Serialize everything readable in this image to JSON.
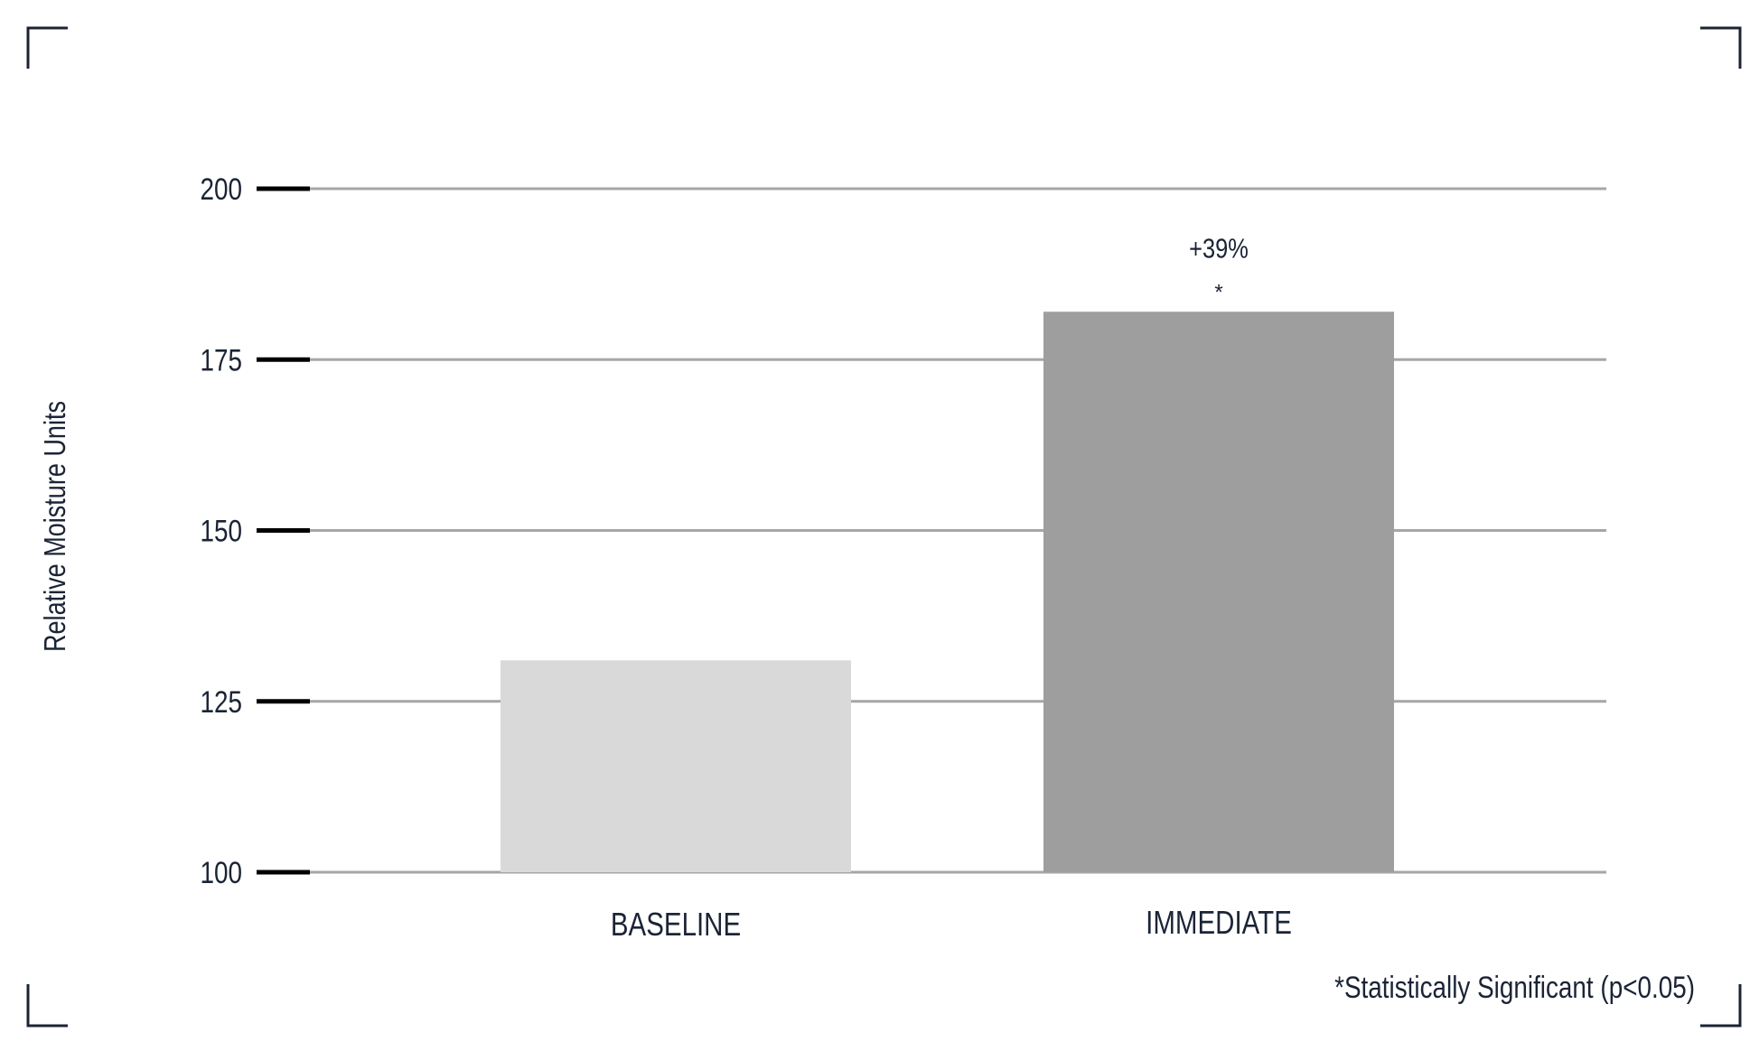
{
  "chart_data": {
    "type": "bar",
    "title": "",
    "xlabel": "",
    "ylabel": "Relative Moisture Units",
    "categories": [
      "BASELINE",
      "IMMEDIATE"
    ],
    "values": [
      131,
      182
    ],
    "ylim": [
      100,
      200
    ],
    "yticks": [
      100,
      125,
      150,
      175,
      200
    ],
    "ytick_labels": [
      "100",
      "125",
      "150",
      "175",
      "200"
    ],
    "grid": true,
    "bar_colors": [
      "#d9d9d9",
      "#9e9e9e"
    ],
    "annotations": [
      {
        "category": "IMMEDIATE",
        "text": "+39%",
        "mark": "*"
      }
    ],
    "footnote": "*Statistically Significant (p<0.05)"
  }
}
